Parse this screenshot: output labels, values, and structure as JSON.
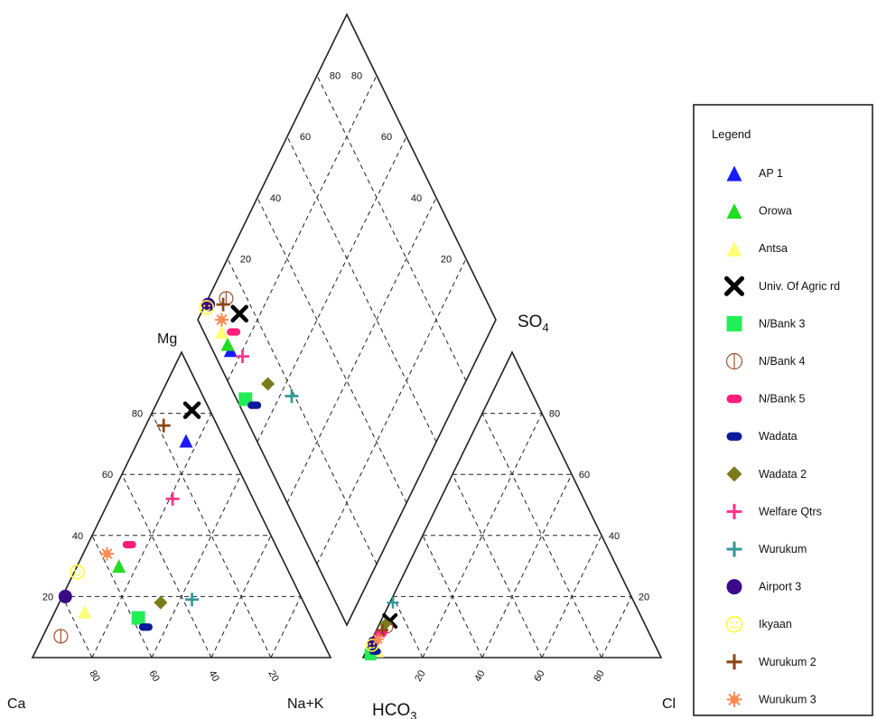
{
  "chart_data": {
    "type": "scatter",
    "subtype": "piper-trilinear-diagram",
    "corner_labels": {
      "ca": "Ca",
      "nak": "Na+K",
      "mg": "Mg",
      "hco3": "HCO",
      "hco3_sub": "3",
      "so4": "SO",
      "so4_sub": "4",
      "cl": "Cl"
    },
    "tick_labels": [
      "20",
      "40",
      "60",
      "80"
    ],
    "grid": true,
    "legend": {
      "placement": "right",
      "title": "Legend",
      "entries": [
        {
          "name": "AP 1",
          "marker": "triangle",
          "color": "#1a1aff"
        },
        {
          "name": "Orowa",
          "marker": "triangle",
          "color": "#22dd22"
        },
        {
          "name": "Antsa",
          "marker": "triangle",
          "color": "#ffff77"
        },
        {
          "name": "Univ. Of Agric rd",
          "marker": "cross-x",
          "color": "#000000"
        },
        {
          "name": "N/Bank 3",
          "marker": "square",
          "color": "#22ee55"
        },
        {
          "name": "N/Bank 4",
          "marker": "circle-bar",
          "color": "#a0522d"
        },
        {
          "name": "N/Bank 5",
          "marker": "pill",
          "color": "#ff1f7a"
        },
        {
          "name": "Wadata",
          "marker": "pill",
          "color": "#0a1a99"
        },
        {
          "name": "Wadata 2",
          "marker": "diamond",
          "color": "#7a7a1a"
        },
        {
          "name": "Welfare Qtrs",
          "marker": "plus",
          "color": "#ff3388"
        },
        {
          "name": "Wurukum",
          "marker": "plus",
          "color": "#339999"
        },
        {
          "name": "Airport 3",
          "marker": "circle",
          "color": "#3a0a8a"
        },
        {
          "name": "Ikyaan",
          "marker": "smiley",
          "color": "#ffff33"
        },
        {
          "name": "Wurukum 2",
          "marker": "plus",
          "color": "#8b4513"
        },
        {
          "name": "Wurukum 3",
          "marker": "burst",
          "color": "#ff8c55"
        }
      ]
    },
    "cation_points": [
      {
        "name": "AP 1",
        "mg": 71,
        "nak": 16
      },
      {
        "name": "Orowa",
        "mg": 30,
        "nak": 14
      },
      {
        "name": "Antsa",
        "mg": 15,
        "nak": 10
      },
      {
        "name": "Univ. Of Agric rd",
        "mg": 81,
        "nak": 13
      },
      {
        "name": "N/Bank 3",
        "mg": 13,
        "nak": 29
      },
      {
        "name": "N/Bank 4",
        "mg": 7,
        "nak": 6
      },
      {
        "name": "N/Bank 5",
        "mg": 37,
        "nak": 14
      },
      {
        "name": "Wadata",
        "mg": 10,
        "nak": 33
      },
      {
        "name": "Wadata 2",
        "mg": 18,
        "nak": 34
      },
      {
        "name": "Welfare Qtrs",
        "mg": 52,
        "nak": 21
      },
      {
        "name": "Wurukum",
        "mg": 19,
        "nak": 44
      },
      {
        "name": "Airport 3",
        "mg": 20,
        "nak": 1
      },
      {
        "name": "Ikyaan",
        "mg": 28,
        "nak": 1
      },
      {
        "name": "Wurukum 2",
        "mg": 76,
        "nak": 6
      },
      {
        "name": "Wurukum 3",
        "mg": 34,
        "nak": 8
      }
    ],
    "anion_points": [
      {
        "name": "AP 1",
        "cl": 4,
        "so4": 2
      },
      {
        "name": "Orowa",
        "cl": 3,
        "so4": 3
      },
      {
        "name": "Antsa",
        "cl": 4,
        "so4": 2
      },
      {
        "name": "Univ. Of Agric rd",
        "cl": 3,
        "so4": 12
      },
      {
        "name": "N/Bank 3",
        "cl": 2,
        "so4": 1
      },
      {
        "name": "N/Bank 4",
        "cl": 3,
        "so4": 10
      },
      {
        "name": "N/Bank 5",
        "cl": 2,
        "so4": 8
      },
      {
        "name": "Wadata",
        "cl": 3,
        "so4": 2
      },
      {
        "name": "Wadata 2",
        "cl": 2,
        "so4": 11
      },
      {
        "name": "Welfare Qtrs",
        "cl": 2,
        "so4": 7
      },
      {
        "name": "Wurukum",
        "cl": 1,
        "so4": 18
      },
      {
        "name": "Airport 3",
        "cl": 1,
        "so4": 5
      },
      {
        "name": "Ikyaan",
        "cl": 1,
        "so4": 4
      },
      {
        "name": "Wurukum 2",
        "cl": 2,
        "so4": 9
      },
      {
        "name": "Wurukum 3",
        "cl": 2,
        "so4": 6
      }
    ]
  }
}
